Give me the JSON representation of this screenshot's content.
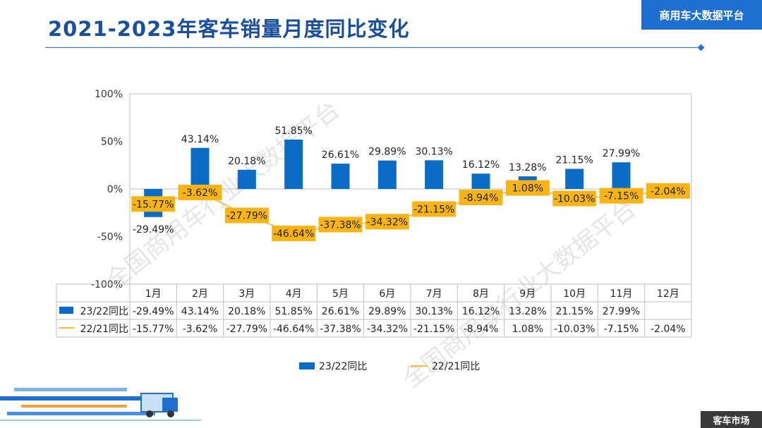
{
  "title": "2021-2023年客车销量月度同比变化",
  "brand": "商用车大数据平台",
  "footer": "客车市场",
  "watermark": "全国商用车行业大数据平台",
  "colors": {
    "bar": "#0b6cc6",
    "line": "#f5b942",
    "label_bg": "#f7b416",
    "title": "#1a4fa0",
    "brand_bg": "#1f6fd1"
  },
  "chart_data": {
    "type": "bar",
    "categories": [
      "1月",
      "2月",
      "3月",
      "4月",
      "5月",
      "6月",
      "7月",
      "8月",
      "9月",
      "10月",
      "11月",
      "12月"
    ],
    "series": [
      {
        "name": "23/22同比",
        "kind": "bar",
        "values": [
          -29.49,
          43.14,
          20.18,
          51.85,
          26.61,
          29.89,
          30.13,
          16.12,
          13.28,
          21.15,
          27.99,
          null
        ],
        "labels": [
          "-29.49%",
          "43.14%",
          "20.18%",
          "51.85%",
          "26.61%",
          "29.89%",
          "30.13%",
          "16.12%",
          "13.28%",
          "21.15%",
          "27.99%",
          ""
        ]
      },
      {
        "name": "22/21同比",
        "kind": "line",
        "values": [
          -15.77,
          -3.62,
          -27.79,
          -46.64,
          -37.38,
          -34.32,
          -21.15,
          -8.94,
          1.08,
          -10.03,
          -7.15,
          -2.04
        ],
        "labels": [
          "-15.77%",
          "-3.62%",
          "-27.79%",
          "-46.64%",
          "-37.38%",
          "-34.32%",
          "-21.15%",
          "-8.94%",
          "1.08%",
          "-10.03%",
          "-7.15%",
          "-2.04%"
        ]
      }
    ],
    "ylim": [
      -100,
      100
    ],
    "yticks": [
      "100%",
      "50%",
      "0%",
      "-50%",
      "-100%"
    ],
    "ytick_values": [
      100,
      50,
      0,
      -50,
      -100
    ],
    "grid": false,
    "data_table": true,
    "legend_position": "bottom"
  }
}
